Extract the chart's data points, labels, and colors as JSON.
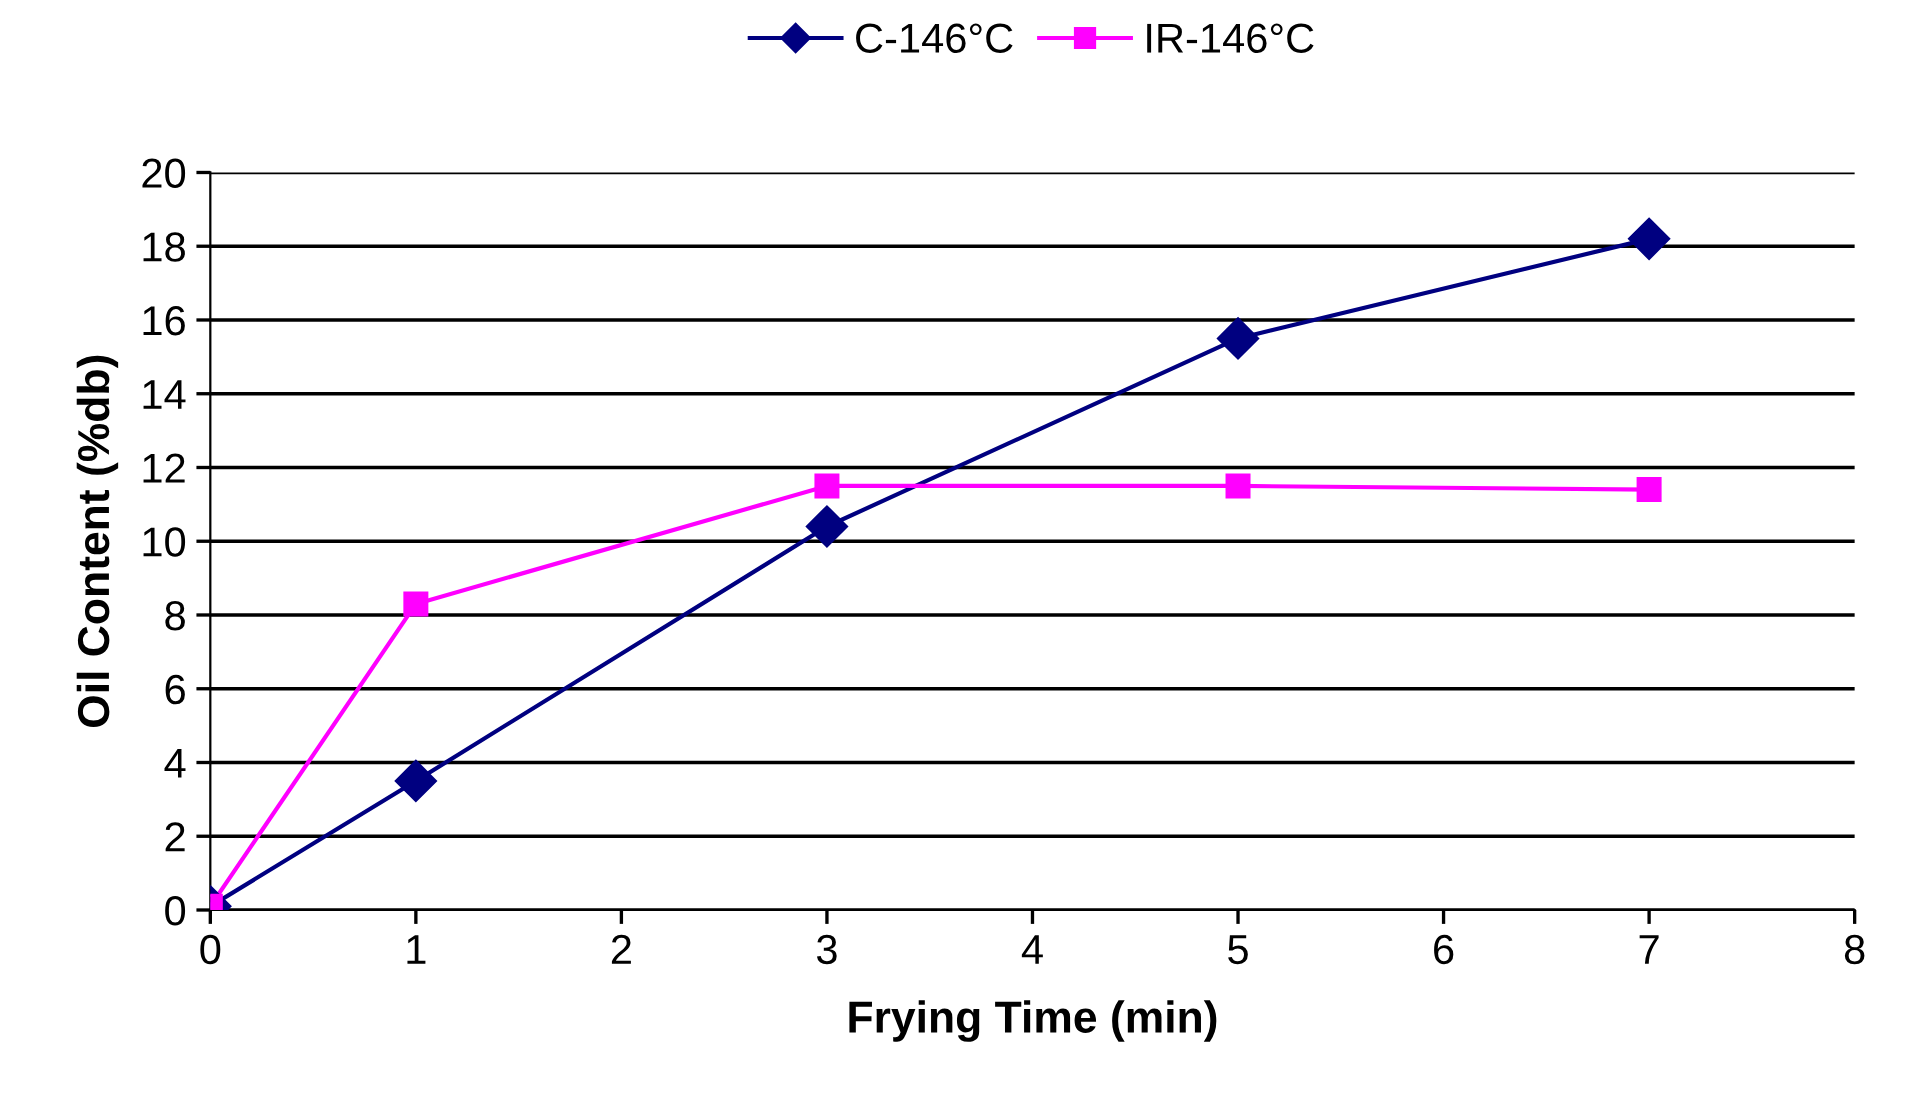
{
  "chart_data": {
    "type": "line",
    "xlabel": "Frying Time (min)",
    "ylabel": "Oil Content (%db)",
    "x": [
      0,
      1,
      3,
      5,
      7
    ],
    "series": [
      {
        "name": "C-146°C",
        "color": "#000080",
        "marker": "diamond",
        "values": [
          0.1,
          3.5,
          10.4,
          15.5,
          18.2
        ]
      },
      {
        "name": "IR-146°C",
        "color": "#ff00ff",
        "marker": "square",
        "values": [
          0.1,
          8.3,
          11.5,
          11.5,
          11.4
        ]
      }
    ],
    "xlim": [
      0,
      8
    ],
    "xticks": [
      0,
      1,
      2,
      3,
      4,
      5,
      6,
      7,
      8
    ],
    "ylim": [
      0,
      20
    ],
    "yticks": [
      0,
      2,
      4,
      6,
      8,
      10,
      12,
      14,
      16,
      18,
      20
    ],
    "grid": "y",
    "legend": "top",
    "line_style": "solid"
  }
}
